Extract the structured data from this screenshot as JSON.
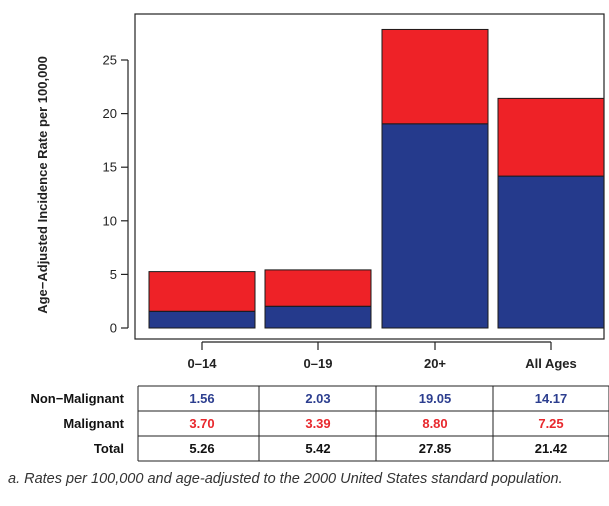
{
  "chart_data": {
    "type": "bar",
    "stacked": true,
    "categories": [
      "0–14",
      "0–19",
      "20+",
      "All Ages"
    ],
    "series": [
      {
        "name": "Non-Malignant",
        "values": [
          1.56,
          2.03,
          19.05,
          14.17
        ],
        "color": "#253a8c"
      },
      {
        "name": "Malignant",
        "values": [
          3.7,
          3.39,
          8.8,
          7.25
        ],
        "color": "#ee2227"
      }
    ],
    "ylabel": "Age−Adjusted Incidence Rate per 100,000",
    "xlabel": "",
    "title": "",
    "ylim": [
      0,
      28
    ],
    "yticks": [
      "0",
      "5",
      "10",
      "15",
      "20",
      "25"
    ],
    "grid": false
  },
  "table": {
    "rows": [
      {
        "label": "Non−Malignant",
        "cells": [
          "1.56",
          "2.03",
          "19.05",
          "14.17"
        ],
        "color": "#2c3e8f"
      },
      {
        "label": "Malignant",
        "cells": [
          "3.70",
          "3.39",
          "8.80",
          "7.25"
        ],
        "color": "#e8282d"
      },
      {
        "label": "Total",
        "cells": [
          "5.26",
          "5.42",
          "27.85",
          "21.42"
        ],
        "color": "#111111"
      }
    ]
  },
  "footnote": "a. Rates per 100,000 and age-adjusted to the 2000 United States standard population."
}
